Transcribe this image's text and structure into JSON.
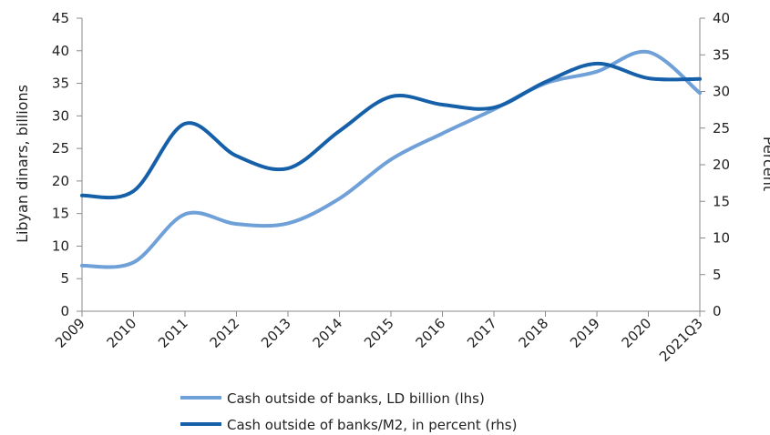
{
  "chart_data": {
    "type": "line",
    "categories": [
      "2009",
      "2010",
      "2011",
      "2012",
      "2013",
      "2014",
      "2015",
      "2016",
      "2017",
      "2018",
      "2019",
      "2020",
      "2021Q3"
    ],
    "series": [
      {
        "name": "Cash outside of banks, LD billion (lhs)",
        "axis": "left",
        "color": "#6fa0d8",
        "values": [
          7.0,
          7.5,
          14.9,
          13.4,
          13.5,
          17.3,
          23.3,
          27.3,
          31.0,
          35.0,
          36.8,
          39.8,
          33.5
        ]
      },
      {
        "name": "Cash outside of banks/M2, in percent (rhs)",
        "axis": "right",
        "color": "#1560a8",
        "values": [
          15.8,
          16.4,
          25.6,
          21.2,
          19.5,
          24.6,
          29.3,
          28.2,
          27.8,
          31.3,
          33.8,
          31.8,
          31.7
        ]
      }
    ],
    "ylabel_left": "Libyan dinars, billions",
    "ylabel_right": "Percent",
    "ylim_left": [
      0,
      45
    ],
    "ylim_right": [
      0,
      40
    ],
    "yticks_left": [
      0,
      5,
      10,
      15,
      20,
      25,
      30,
      35,
      40,
      45
    ],
    "yticks_right": [
      0,
      5,
      10,
      15,
      20,
      25,
      30,
      35,
      40
    ],
    "grid": false,
    "legend_position": "bottom"
  }
}
